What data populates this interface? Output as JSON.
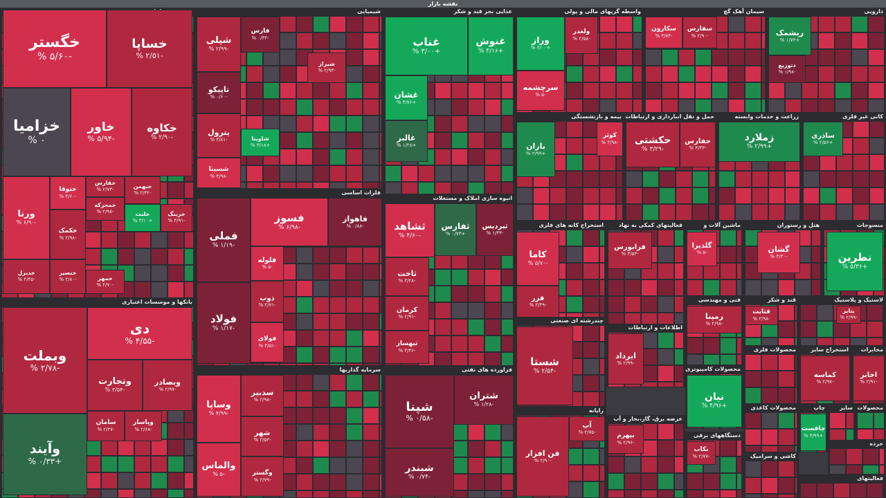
{
  "page": {
    "title": "نقشه بازار"
  },
  "colors": {
    "red_strong": "#d22f4d",
    "red_mid": "#b0283f",
    "red_dark": "#7d2236",
    "gray": "#4c4650",
    "green_strong": "#14a95a",
    "green_mid": "#1f8a4e",
    "green_dark": "#2f6a48"
  },
  "sectors": [
    {
      "name": "khodro",
      "title": "خودرو و قطعات",
      "tiles": [
        {
          "id": "khegostar",
          "name": "خگستر",
          "pct": "-۵/۶۰ %"
        },
        {
          "id": "khsapa",
          "name": "خساپا",
          "pct": "-۲/۵۱ %"
        },
        {
          "id": "khzamia",
          "name": "خزامیا",
          "pct": "۰ %"
        },
        {
          "id": "khavar",
          "name": "خاور",
          "pct": "-۵/۹۴ %"
        },
        {
          "id": "khkaveh",
          "name": "خکاوه",
          "pct": "-۲/۹۰ %"
        },
        {
          "id": "varna",
          "name": "ورنا",
          "pct": "-۶/۹۰ %"
        },
        {
          "id": "khtogha",
          "name": "ختوقا",
          "pct": "-۴/۶۰ %"
        },
        {
          "id": "khfaras",
          "name": "خفارس",
          "pct": "-۲/۷۳ %"
        },
        {
          "id": "khbahman",
          "name": "خبهمن",
          "pct": "-۲/۴۲ %"
        },
        {
          "id": "khcomak",
          "name": "خکمک",
          "pct": "-۲/۹۸ %"
        },
        {
          "id": "khmehrkhe",
          "name": "خمحرکه",
          "pct": "-۲/۹۸ %"
        },
        {
          "id": "khliz",
          "name": "خلنت",
          "pct": "+۳/۱۰ %"
        },
        {
          "id": "khrang",
          "name": "خرینگ",
          "pct": "-۳/۹۱ %"
        },
        {
          "id": "khdizel",
          "name": "خدیزل",
          "pct": "-۲/۴۵ %"
        },
        {
          "id": "khmohar",
          "name": "خنصیر",
          "pct": "-۲/۸۰ %"
        },
        {
          "id": "khbahr",
          "name": "خمهر",
          "pct": "-۲/۷۰ %"
        }
      ]
    },
    {
      "name": "shimiaee",
      "title": "شیمیایی",
      "tiles": [
        {
          "id": "shepli",
          "name": "شپلی",
          "pct": "-۲/۹۹ %"
        },
        {
          "id": "fars",
          "name": "فارس",
          "pct": "-۰/۳۴ %"
        },
        {
          "id": "tapiko",
          "name": "تاپیکو",
          "pct": "-۰/۶۰ %"
        },
        {
          "id": "petrol",
          "name": "پترول",
          "pct": "-۳/۸۱ %"
        },
        {
          "id": "shesina",
          "name": "شسینا",
          "pct": "-۴/۹۸ %"
        },
        {
          "id": "shiraz",
          "name": "شیراز",
          "pct": "-۲/۹۳ %"
        },
        {
          "id": "shaoeta",
          "name": "شاوینا",
          "pct": "+۳/۱۸ %"
        }
      ]
    },
    {
      "name": "ghazaee",
      "title": "غذایی بجز قند و شکر",
      "tiles": [
        {
          "id": "ghenab",
          "name": "غناب",
          "pct": "+۳/۰۰ %"
        },
        {
          "id": "ghenosh",
          "name": "غنوش",
          "pct": "+۴/۱۶ %"
        },
        {
          "id": "ghshan",
          "name": "غشان",
          "pct": "+۴/۷۶ %"
        },
        {
          "id": "ghalbor",
          "name": "غالبر",
          "pct": "+۱/۲۸ %"
        }
      ]
    },
    {
      "name": "vasete",
      "title": "واسطه گریهای مالی و پولی",
      "tiles": [
        {
          "id": "vraz",
          "name": "وراز",
          "pct": "+۳/۰۰ %"
        },
        {
          "id": "vlekhdir",
          "name": "ولغدر",
          "pct": "-۲/۵۸ %"
        },
        {
          "id": "sarchashme",
          "name": "سرچشمه",
          "pct": "-۵ %"
        }
      ]
    },
    {
      "name": "siman",
      "title": "سیمان آهک گچ",
      "tiles": [
        {
          "id": "sefars",
          "name": "سفارس",
          "pct": "-۲/۹۰ %"
        },
        {
          "id": "sekaron",
          "name": "سکارون",
          "pct": "-۴/۷۴ %"
        }
      ]
    },
    {
      "name": "daroee",
      "title": "دارویی",
      "tiles": [
        {
          "id": "rishmak",
          "name": "ریشمک",
          "pct": "+۱/۷۳ %"
        },
        {
          "id": "dtozi",
          "name": "دتوزیع",
          "pct": "-۱/۹۸ %"
        }
      ]
    },
    {
      "name": "banks",
      "title": "بانکها و موسسات اعتباری",
      "tiles": [
        {
          "id": "vbemellat",
          "name": "وبملت",
          "pct": "-۲/۷۸ %"
        },
        {
          "id": "di",
          "name": "دی",
          "pct": "-۴/۵۵ %"
        },
        {
          "id": "vtejarat",
          "name": "وتجارت",
          "pct": "-۳/۵۴ %"
        },
        {
          "id": "vsaderat",
          "name": "وبصادر",
          "pct": "-۲/۹۷ %"
        },
        {
          "id": "vayand",
          "name": "وآیند",
          "pct": "+۰/۳۳ %"
        },
        {
          "id": "saman",
          "name": "سامان",
          "pct": "-۲/۲۷ %"
        },
        {
          "id": "vpasar",
          "name": "وپاسار",
          "pct": "-۲/۶۸ %"
        }
      ]
    },
    {
      "name": "felezat",
      "title": "فلزات اساسی",
      "tiles": [
        {
          "id": "femeli",
          "name": "فملی",
          "pct": "-۱/۱۹ %"
        },
        {
          "id": "fooladh",
          "name": "فولاد",
          "pct": "-۱/۱۷ %"
        },
        {
          "id": "fesoz",
          "name": "فسوز",
          "pct": "-۶/۹۸ %"
        },
        {
          "id": "fahvaz",
          "name": "فاهواز",
          "pct": "-۰/۸۸ %"
        },
        {
          "id": "folale",
          "name": "فلوله",
          "pct": "-۵ %"
        },
        {
          "id": "zob",
          "name": "ذوب",
          "pct": "-۲/۷۱ %"
        },
        {
          "id": "foolai",
          "name": "فولای",
          "pct": "-۴/۵۱ %"
        }
      ]
    },
    {
      "name": "anbooh",
      "title": "انبوه سازی املاک و مستغلات",
      "tiles": [
        {
          "id": "theshahd",
          "name": "ثشاهد",
          "pct": "-۴/۶۰ %"
        },
        {
          "id": "tafars",
          "name": "ثفارس",
          "pct": "+۰/۷۳ %"
        },
        {
          "id": "tebridis",
          "name": "ثبردیس",
          "pct": "-۱/۳۳ %"
        },
        {
          "id": "takhat",
          "name": "ثاخت",
          "pct": "-۳/۲۸ %"
        },
        {
          "id": "kerman",
          "name": "کرمان",
          "pct": "-۲/۹۱ %"
        },
        {
          "id": "tbahas",
          "name": "ثبهساز",
          "pct": "-۳/۴۶ %"
        }
      ]
    },
    {
      "name": "saramaye",
      "title": "سرمایه گذاریها",
      "tiles": [
        {
          "id": "vsapa",
          "name": "وساپا",
          "pct": "-۴/۹۹ %"
        },
        {
          "id": "vsadbir",
          "name": "سدبیر",
          "pct": "-۲/۹۸ %"
        },
        {
          "id": "shahr",
          "name": "شهر",
          "pct": "-۲/۵۳ %"
        },
        {
          "id": "valmas",
          "name": "والماس",
          "pct": "-۵ %"
        },
        {
          "id": "vgostar",
          "name": "وگستر",
          "pct": "-۲/۷۹ %"
        }
      ]
    },
    {
      "name": "faravardeh",
      "title": "فراورده های نفتی",
      "tiles": [
        {
          "id": "shepna",
          "name": "شپنا",
          "pct": "-۰/۵۸ %"
        },
        {
          "id": "shetran",
          "name": "شتران",
          "pct": "-۱/۲۸ %"
        },
        {
          "id": "shebandar",
          "name": "شبندر",
          "pct": "-۰/۷۴ %"
        }
      ]
    },
    {
      "name": "bime",
      "title": "بیمه و بازنشستگی",
      "tiles": [
        {
          "id": "baran",
          "name": "باران",
          "pct": "+۲/۹۹ %"
        },
        {
          "id": "kouter",
          "name": "کوثر",
          "pct": "-۴/۹۸ %"
        }
      ]
    },
    {
      "name": "haml",
      "title": "حمل و نقل انبارداری و ارتباطات",
      "tiles": [
        {
          "id": "hekashti",
          "name": "حکشتی",
          "pct": "-۳/۲۹ %"
        },
        {
          "id": "hafaras",
          "name": "حفارس",
          "pct": "-۳/۴۳ %"
        }
      ]
    },
    {
      "name": "zeraat",
      "title": "زراعت و خدمات وابسته",
      "tiles": [
        {
          "id": "zemlard",
          "name": "زملارد",
          "pct": "+۲/۹۹ %"
        }
      ]
    },
    {
      "name": "kani",
      "title": "کانی غیر فلزی",
      "tiles": [
        {
          "id": "saderi",
          "name": "ساذری",
          "pct": "+۲/۵۶ %"
        }
      ]
    },
    {
      "name": "estekhraj",
      "title": "استخراج کانه های فلزی",
      "tiles": [
        {
          "id": "kama",
          "name": "کاما",
          "pct": "-۵/۷۰ %"
        },
        {
          "id": "fazar",
          "name": "فزر",
          "pct": "-۲/۴۹ %"
        }
      ]
    },
    {
      "name": "chandreshte",
      "title": "چندرشته ای صنعتی",
      "tiles": [
        {
          "id": "shesta",
          "name": "شستا",
          "pct": "-۲/۵۴ %"
        }
      ]
    },
    {
      "name": "fa_komaki",
      "title": "فعالیتهای کمکی به نهاد های مالی",
      "tiles": [
        {
          "id": "farabours",
          "name": "فرابورس",
          "pct": "-۳/۵۳ %"
        }
      ]
    },
    {
      "name": "mashin",
      "title": "ماشین آلات و تجهیزات",
      "tiles": [
        {
          "id": "gendilra",
          "name": "گلدیرا",
          "pct": "-۵ %"
        }
      ]
    },
    {
      "name": "hotel",
      "title": "هتل و رستوران",
      "tiles": [
        {
          "id": "gashan",
          "name": "گشان",
          "pct": "-۴/۳۰ %"
        }
      ]
    },
    {
      "name": "mansoojat",
      "title": "منسوجات",
      "tiles": [
        {
          "id": "nataron",
          "name": "نطرین",
          "pct": "+۵/۳۶ %"
        }
      ]
    },
    {
      "name": "etelaat",
      "title": "اطلاعات و ارتباطات",
      "tiles": [
        {
          "id": "iran_dol",
          "name": "ایرداد",
          "pct": "-۲/۹۹ %"
        }
      ]
    },
    {
      "name": "mahsoolat",
      "title": "محصولات کامپیوتری",
      "tiles": [
        {
          "id": "nayan",
          "name": "نیان",
          "pct": "+۴/۹۶ %"
        }
      ]
    },
    {
      "name": "fanni",
      "title": "فنی و مهندسی",
      "tiles": [
        {
          "id": "rahman",
          "name": "رمپنا",
          "pct": "-۲/۹۸ %"
        }
      ]
    },
    {
      "name": "ghand",
      "title": "قند و شکر",
      "tiles": [
        {
          "id": "ghelat",
          "name": "قثابت",
          "pct": "-۲/۹۸ %"
        }
      ]
    },
    {
      "name": "lastik",
      "title": "لاستیک و پلاستیک",
      "tiles": [
        {
          "id": "pandar",
          "name": "پتایر",
          "pct": "-۲/۹۹ %"
        }
      ]
    },
    {
      "name": "rayaneh",
      "title": "رایانه",
      "tiles": [
        {
          "id": "ap",
          "name": "آپ",
          "pct": "-۲/۷۵ %"
        },
        {
          "id": "fanafzar",
          "name": "فن افزار",
          "pct": "-۲/۹۰ %"
        }
      ]
    },
    {
      "name": "arzeh",
      "title": "عرضه برق، گاز،بخار و آب گرم",
      "tiles": [
        {
          "id": "bahmeram",
          "name": "بپهرم",
          "pct": "-۲/۹۶ %"
        }
      ]
    },
    {
      "name": "dastgah",
      "title": "دستگاههای برقی",
      "tiles": [
        {
          "id": "bekab",
          "name": "بکاب",
          "pct": "-۲/۷۷ %"
        }
      ]
    },
    {
      "name": "kashi",
      "title": "کاشی و سرامیک",
      "tiles": []
    },
    {
      "name": "chap",
      "title": "چاپ",
      "tiles": [
        {
          "id": "chafest",
          "name": "چافست",
          "pct": "+۳/۹۹ %"
        }
      ]
    },
    {
      "name": "mahsoolat_kaghazi",
      "title": "محصولات کاغذی",
      "tiles": []
    },
    {
      "name": "sayer_vasete",
      "title": "سایر واسطه",
      "tiles": []
    },
    {
      "name": "mahsoolat_fel",
      "title": "محصولات فلزی",
      "tiles": []
    },
    {
      "name": "estekhraj_sayer",
      "title": "استخراج سایر",
      "tiles": [
        {
          "id": "kamase",
          "name": "کماسه",
          "pct": "-۲/۹۷ %"
        }
      ]
    },
    {
      "name": "makhaberat",
      "title": "مخابرات",
      "tiles": [
        {
          "id": "akhaber",
          "name": "اخابر",
          "pct": "-۲/۹۱ %"
        }
      ]
    },
    {
      "name": "mahsoolat_chobi",
      "title": "محصولات چوبی",
      "tiles": []
    },
    {
      "name": "kharideh",
      "title": "خرده",
      "tiles": []
    },
    {
      "name": "faaliat",
      "title": "فعالیتهای",
      "tiles": []
    }
  ]
}
